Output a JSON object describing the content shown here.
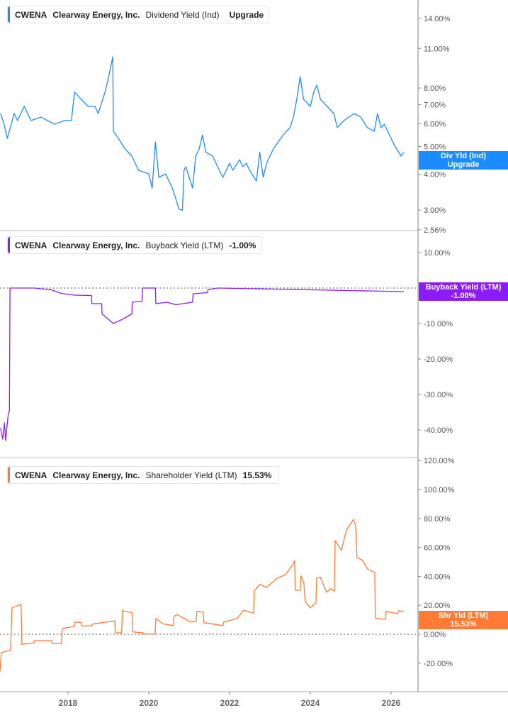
{
  "colors": {
    "dividend": "#1a8cff",
    "buyback": "#8b1cf7",
    "shareholder": "#ff7a35",
    "axis": "#999999"
  },
  "panels": [
    {
      "ticker": "CWENA",
      "company": "Clearway Energy, Inc.",
      "metric": "Dividend Yield (Ind)",
      "value": "Upgrade",
      "tag_line1": "Div Yld (Ind)",
      "tag_line2": "Upgrade"
    },
    {
      "ticker": "CWENA",
      "company": "Clearway Energy, Inc.",
      "metric": "Buyback Yield (LTM)",
      "value": "-1.00%",
      "tag_line1": "Buyback Yield (LTM)",
      "tag_line2": "-1.00%"
    },
    {
      "ticker": "CWENA",
      "company": "Clearway Energy, Inc.",
      "metric": "Shareholder Yield (LTM)",
      "value": "15.53%",
      "tag_line1": "Shr Yld (LTM)",
      "tag_line2": "15.53%"
    }
  ],
  "chart_data": [
    {
      "type": "line",
      "scale": "log",
      "ylim": [
        2.56,
        15.5
      ],
      "yticks": [
        14,
        11,
        8,
        7,
        6,
        5,
        4,
        3,
        2.56
      ],
      "ytick_labels": [
        "14.00%",
        "11.00%",
        "8.00%",
        "7.00%",
        "6.00%",
        "5.00%",
        "4.00%",
        "3.00%",
        "2.56%"
      ],
      "series": [
        {
          "name": "Dividend Yield (Ind)",
          "points": [
            [
              "2016-05-01",
              6.52
            ],
            [
              "2016-06-01",
              5.98
            ],
            [
              "2016-07-01",
              5.34
            ],
            [
              "2016-09-01",
              6.52
            ],
            [
              "2016-10-01",
              6.16
            ],
            [
              "2016-12-01",
              6.9
            ],
            [
              "2017-02-01",
              6.16
            ],
            [
              "2017-05-01",
              6.33
            ],
            [
              "2017-09-01",
              5.98
            ],
            [
              "2017-12-01",
              6.16
            ],
            [
              "2018-02-01",
              6.16
            ],
            [
              "2018-03-01",
              7.74
            ],
            [
              "2018-05-01",
              7.31
            ],
            [
              "2018-07-01",
              6.9
            ],
            [
              "2018-09-01",
              6.9
            ],
            [
              "2018-10-01",
              6.52
            ],
            [
              "2018-12-01",
              7.74
            ],
            [
              "2019-01-01",
              8.67
            ],
            [
              "2019-02-10",
              10.29
            ],
            [
              "2019-02-15",
              5.65
            ],
            [
              "2019-04-01",
              5.34
            ],
            [
              "2019-06-01",
              4.9
            ],
            [
              "2019-08-01",
              4.63
            ],
            [
              "2019-10-01",
              4.13
            ],
            [
              "2020-01-01",
              4.01
            ],
            [
              "2020-02-01",
              3.58
            ],
            [
              "2020-03-01",
              5.19
            ],
            [
              "2020-04-01",
              3.9
            ],
            [
              "2020-06-01",
              4.01
            ],
            [
              "2020-08-01",
              3.58
            ],
            [
              "2020-09-01",
              3.29
            ],
            [
              "2020-10-01",
              3.02
            ],
            [
              "2020-11-01",
              2.99
            ],
            [
              "2020-11-15",
              4.13
            ],
            [
              "2020-12-01",
              4.25
            ],
            [
              "2021-02-01",
              3.58
            ],
            [
              "2021-03-01",
              4.63
            ],
            [
              "2021-04-01",
              4.9
            ],
            [
              "2021-05-01",
              5.49
            ],
            [
              "2021-06-01",
              4.77
            ],
            [
              "2021-08-01",
              4.63
            ],
            [
              "2021-10-01",
              4.13
            ],
            [
              "2021-11-01",
              3.9
            ],
            [
              "2022-01-01",
              4.37
            ],
            [
              "2022-02-01",
              4.13
            ],
            [
              "2022-04-01",
              4.5
            ],
            [
              "2022-05-01",
              4.25
            ],
            [
              "2022-06-01",
              4.37
            ],
            [
              "2022-07-01",
              4.13
            ],
            [
              "2022-09-01",
              3.79
            ],
            [
              "2022-10-01",
              4.77
            ],
            [
              "2022-11-01",
              3.9
            ],
            [
              "2022-12-01",
              4.37
            ],
            [
              "2023-02-01",
              4.9
            ],
            [
              "2023-05-01",
              5.49
            ],
            [
              "2023-07-01",
              5.82
            ],
            [
              "2023-08-01",
              6.33
            ],
            [
              "2023-09-01",
              7.31
            ],
            [
              "2023-10-01",
              8.77
            ],
            [
              "2023-11-01",
              7.31
            ],
            [
              "2024-01-01",
              6.9
            ],
            [
              "2024-02-01",
              7.74
            ],
            [
              "2024-03-01",
              8.19
            ],
            [
              "2024-04-01",
              7.31
            ],
            [
              "2024-06-01",
              6.9
            ],
            [
              "2024-08-01",
              6.52
            ],
            [
              "2024-09-01",
              5.82
            ],
            [
              "2024-11-01",
              6.16
            ],
            [
              "2025-02-01",
              6.52
            ],
            [
              "2025-04-01",
              6.33
            ],
            [
              "2025-06-01",
              5.82
            ],
            [
              "2025-08-01",
              5.65
            ],
            [
              "2025-09-01",
              6.52
            ],
            [
              "2025-10-01",
              5.82
            ],
            [
              "2025-11-01",
              5.98
            ],
            [
              "2026-01-01",
              5.34
            ],
            [
              "2026-02-01",
              5.04
            ],
            [
              "2026-04-01",
              4.63
            ],
            [
              "2026-04-25",
              4.77
            ]
          ]
        }
      ]
    },
    {
      "type": "line",
      "scale": "linear",
      "ylim": [
        -45,
        20
      ],
      "yticks": [
        10,
        -10,
        -20,
        -30,
        -40
      ],
      "ytick_labels": [
        "10.00%",
        "-10.00%",
        "-20.00%",
        "-30.00%",
        "-40.00%"
      ],
      "reference_line": 0,
      "series": [
        {
          "name": "Buyback Yield (LTM)",
          "points": [
            [
              "2016-05-01",
              -39.5
            ],
            [
              "2016-05-20",
              -42.6
            ],
            [
              "2016-06-05",
              -38
            ],
            [
              "2016-06-15",
              -43
            ],
            [
              "2016-07-10",
              -35.5
            ],
            [
              "2016-07-20",
              -34.6
            ],
            [
              "2016-07-25",
              0
            ],
            [
              "2017-03-01",
              0
            ],
            [
              "2017-08-01",
              -0.5
            ],
            [
              "2017-11-01",
              -1.5
            ],
            [
              "2018-03-01",
              -2
            ],
            [
              "2018-08-01",
              -2.1
            ],
            [
              "2018-08-05",
              -4.4
            ],
            [
              "2018-11-01",
              -4.4
            ],
            [
              "2018-11-05",
              -7.3
            ],
            [
              "2019-02-15",
              -10
            ],
            [
              "2019-05-15",
              -8.7
            ],
            [
              "2019-08-01",
              -7.3
            ],
            [
              "2019-08-05",
              -4.0
            ],
            [
              "2019-11-01",
              -3.7
            ],
            [
              "2019-11-05",
              0
            ],
            [
              "2020-03-01",
              0
            ],
            [
              "2020-03-05",
              -4.4
            ],
            [
              "2020-06-15",
              -4
            ],
            [
              "2020-09-01",
              -4.7
            ],
            [
              "2021-02-01",
              -4
            ],
            [
              "2021-02-05",
              -1.6
            ],
            [
              "2021-06-15",
              -1.3
            ],
            [
              "2021-06-20",
              -0.5
            ],
            [
              "2021-09-15",
              0
            ],
            [
              "2026-04-25",
              -1.0
            ]
          ]
        }
      ]
    },
    {
      "type": "line",
      "scale": "linear",
      "ylim": [
        -30,
        122
      ],
      "yticks": [
        120,
        100,
        80,
        60,
        40,
        20,
        0,
        -20
      ],
      "ytick_labels": [
        "120.00%",
        "100.00%",
        "80.00%",
        "60.00%",
        "40.00%",
        "20.00%",
        "0.00%",
        "-20.00%"
      ],
      "reference_line": 0,
      "xticks": [
        "2018",
        "2020",
        "2022",
        "2024",
        "2026"
      ],
      "series": [
        {
          "name": "Shareholder Yield (LTM)",
          "points": [
            [
              "2016-04-25",
              -26
            ],
            [
              "2016-05-08",
              -12.7
            ],
            [
              "2016-07-30",
              -11.1
            ],
            [
              "2016-08-12",
              18.3
            ],
            [
              "2016-11-03",
              20.6
            ],
            [
              "2016-11-10",
              -7
            ],
            [
              "2017-02-27",
              -5.9
            ],
            [
              "2017-03-05",
              -4.4
            ],
            [
              "2017-08-06",
              -4.4
            ],
            [
              "2017-08-10",
              -6.4
            ],
            [
              "2017-11-03",
              -6.4
            ],
            [
              "2017-11-10",
              4
            ],
            [
              "2018-02-27",
              5.4
            ],
            [
              "2018-03-05",
              8.5
            ],
            [
              "2018-05-01",
              8
            ],
            [
              "2018-05-08",
              5.6
            ],
            [
              "2018-08-06",
              6
            ],
            [
              "2018-08-10",
              7
            ],
            [
              "2019-02-27",
              9.3
            ],
            [
              "2019-03-05",
              1
            ],
            [
              "2019-05-01",
              1
            ],
            [
              "2019-05-08",
              16.3
            ],
            [
              "2019-08-06",
              14.7
            ],
            [
              "2019-08-10",
              1.6
            ],
            [
              "2019-11-10",
              1
            ],
            [
              "2019-11-16",
              0.2
            ],
            [
              "2020-02-27",
              0.2
            ],
            [
              "2020-03-05",
              10.9
            ],
            [
              "2020-05-08",
              7.2
            ],
            [
              "2020-08-12",
              6
            ],
            [
              "2020-08-16",
              12.3
            ],
            [
              "2020-09-13",
              13.6
            ],
            [
              "2021-01-13",
              8.5
            ],
            [
              "2021-03-05",
              8.8
            ],
            [
              "2021-03-11",
              15.8
            ],
            [
              "2021-05-08",
              15.4
            ],
            [
              "2021-05-14",
              8
            ],
            [
              "2021-11-03",
              6
            ],
            [
              "2021-11-10",
              8.5
            ],
            [
              "2022-03-11",
              10.9
            ],
            [
              "2022-05-08",
              16.6
            ],
            [
              "2022-08-06",
              14.5
            ],
            [
              "2022-08-12",
              29.8
            ],
            [
              "2022-10-03",
              34.6
            ],
            [
              "2022-11-29",
              32.2
            ],
            [
              "2023-03-05",
              38.7
            ],
            [
              "2023-05-21",
              41.2
            ],
            [
              "2023-07-30",
              48.5
            ],
            [
              "2023-08-12",
              51
            ],
            [
              "2023-08-18",
              30.4
            ],
            [
              "2023-10-03",
              30.4
            ],
            [
              "2023-10-09",
              40.4
            ],
            [
              "2023-11-03",
              35.5
            ],
            [
              "2023-11-16",
              22.5
            ],
            [
              "2024-01-01",
              18.3
            ],
            [
              "2024-02-21",
              21.6
            ],
            [
              "2024-02-27",
              38.7
            ],
            [
              "2024-03-30",
              39.5
            ],
            [
              "2024-05-27",
              29
            ],
            [
              "2024-07-04",
              31.5
            ],
            [
              "2024-08-06",
              29.8
            ],
            [
              "2024-08-12",
              64.7
            ],
            [
              "2024-10-09",
              58
            ],
            [
              "2024-11-23",
              72
            ],
            [
              "2024-12-19",
              75
            ],
            [
              "2025-01-26",
              79.3
            ],
            [
              "2025-02-14",
              75
            ],
            [
              "2025-02-27",
              53
            ],
            [
              "2025-04-19",
              51
            ],
            [
              "2025-06-03",
              45
            ],
            [
              "2025-08-06",
              42.6
            ],
            [
              "2025-08-12",
              10.9
            ],
            [
              "2025-11-10",
              10.4
            ],
            [
              "2025-11-16",
              15.8
            ],
            [
              "2026-02-27",
              14.2
            ],
            [
              "2026-03-11",
              16.3
            ],
            [
              "2026-05-01",
              15.5
            ]
          ]
        }
      ]
    }
  ]
}
